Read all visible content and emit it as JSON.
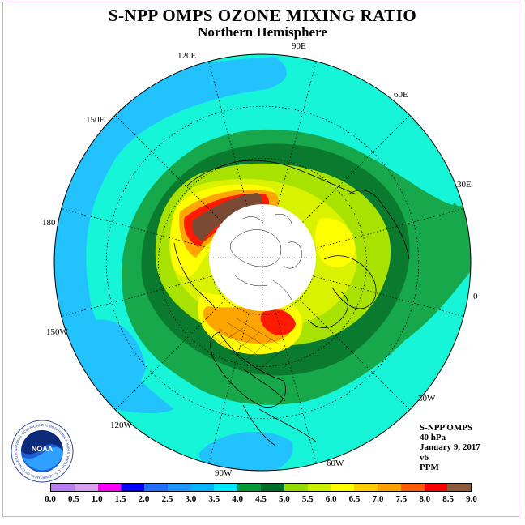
{
  "title": "S-NPP OMPS OZONE MIXING RATIO",
  "subtitle": "Northern Hemisphere",
  "longitude_labels": [
    "90E",
    "60E",
    "30E",
    "0",
    "30W",
    "60W",
    "90W",
    "120W",
    "150W",
    "180",
    "150E",
    "120E"
  ],
  "info": {
    "instrument": "S-NPP OMPS",
    "pressure": "40 hPa",
    "date": "January 9, 2017",
    "version": "v6",
    "units": "PPM"
  },
  "colorbar": {
    "ticks": [
      "0.0",
      "0.5",
      "1.0",
      "1.5",
      "2.0",
      "2.5",
      "3.0",
      "3.5",
      "4.0",
      "4.5",
      "5.0",
      "5.5",
      "6.0",
      "6.5",
      "7.0",
      "7.5",
      "8.0",
      "8.5",
      "9.0"
    ],
    "colors": [
      "#b77ff2",
      "#d9a0f0",
      "#ff00ff",
      "#0000ff",
      "#1e6fff",
      "#1e96ff",
      "#00b4ff",
      "#00e6ff",
      "#009a3a",
      "#006e28",
      "#96dc00",
      "#ccf000",
      "#ffff00",
      "#ffcc00",
      "#ffa000",
      "#ff5a00",
      "#ff0000",
      "#8b5a3a"
    ]
  },
  "map_colors": {
    "ocean_blue": "#22c2ff",
    "cyan": "#16f5d8",
    "green_light": "#16a84a",
    "green_dark": "#097a2e",
    "yellow_green": "#a8e200",
    "lime": "#d8f200",
    "yellow": "#ffff00",
    "orange": "#ffa500",
    "red": "#ff1a00",
    "brown": "#7a4a34"
  },
  "logo": {
    "text": "NOAA",
    "ring_text": "NATIONAL OCEANIC AND ATMOSPHERIC ADMINISTRATION · U.S. DEPARTMENT OF COMMERCE"
  }
}
